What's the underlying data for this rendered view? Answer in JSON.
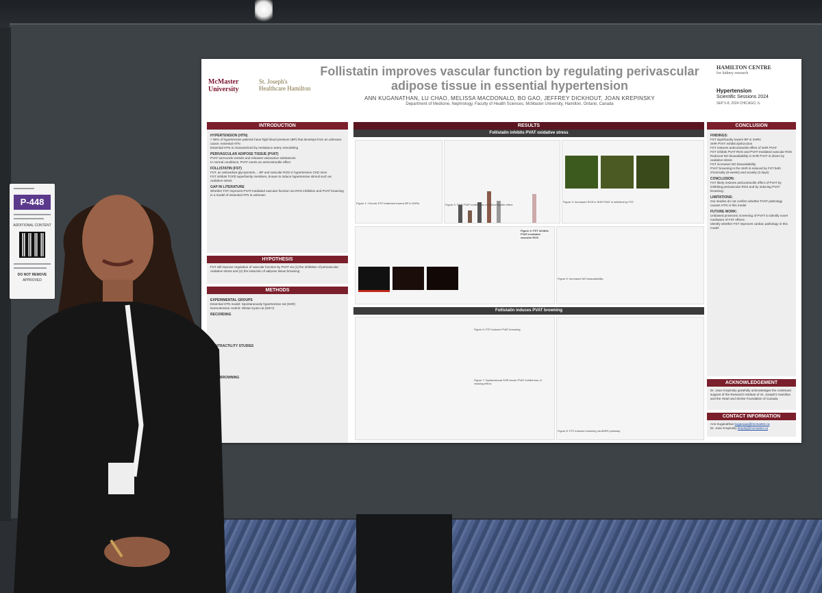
{
  "sign": {
    "badge": "P-448",
    "note": "DO NOT REMOVE",
    "small_a": "ADDITIONAL CONTENT",
    "small_b": "APPROVED"
  },
  "poster": {
    "logo_mcmaster": "McMaster University",
    "logo_stjoes": "St. Joseph's Healthcare Hamilton",
    "logo_hamilton": "HAMILTON CENTRE",
    "logo_hamilton_sub": "for kidney research",
    "logo_hypertension": "Hypertension",
    "logo_hypertension_sub": "Scientific Sessions 2024",
    "logo_dates": "SEP 5-8, 2024 CHICAGO, IL",
    "title": "Follistatin improves vascular function by regulating perivascular adipose tissue in essential hypertension",
    "authors": "ANN KUGANATHAN, LU CHAO, MELISSA MACDONALD, BO GAO, JEFFREY DICKHOUT, JOAN KREPINSKY",
    "department": "Department of Medicine, Nephrology, Faculty of Health Sciences, McMaster University, Hamilton, Ontario, Canada",
    "sections": {
      "introduction": "INTRODUCTION",
      "hypothesis": "HYPOTHESIS",
      "methods": "METHODS",
      "results": "RESULTS",
      "results_sub1": "Follistatin inhibits PVAT oxidative stress",
      "results_sub2": "Follistatin induces PVAT browning",
      "conclusion": "CONCLUSION",
      "acknowledgement": "ACKNOWLEDGEMENT",
      "contact": "CONTACT INFORMATION"
    },
    "intro": {
      "h1": "HYPERTENSION (HTN)",
      "t1": "> 95% of hypertensive patients have high blood pressure (BP) that develops from an unknown cause: essential HTN",
      "t2": "Essential HTN is characterized by resistance artery remodeling",
      "h2": "PERIVASCULAR ADIPOSE TISSUE (PVAT)",
      "t3": "PVAT surrounds vessels and releases vasoactive substances",
      "t4": "In normal conditions, PVAT exerts an anticontractile effect",
      "h3": "FOLLISTATIN (FST)",
      "t5": "FST, an antioxidant glycoprotein, ↓ BP and vascular ROS in hypertensive CKD mice",
      "t6": "FST inhibits TGFβ superfamily members, known to induce hypertensive stimuli such as oxidative stress",
      "h4": "GAP IN LITERATURE",
      "t7": "Whether FST improves PVAT-mediated vascular function via ROS inhibition and PVAT browning in a model of essential HTN is unknown"
    },
    "hypothesis_text": "FST will improve regulation of vascular function by PVAT via (1) the inhibition of perivascular oxidative stress and (2) the induction of adipose tissue browning",
    "methods": {
      "h1": "EXPERIMENTAL GROUPS",
      "t1": "Essential HTN model: Spontaneously hypertensive rat (SHR)",
      "t2": "Normotensive control: Wistar Kyoto rat (WKY)",
      "h2": "RECORDING",
      "h3": "CONTRACTILITY STUDIES",
      "h4": "PVAT BROWNING"
    },
    "figure_captions": {
      "f1": "Figure 1: Chronic FST treatment lowers BP in SHRs.",
      "f2": "Figure 2: SHR PVAT exhibit loss of anticontractile effect.",
      "f3": "Figure 3: Increased ROS in SHR PVAT is inhibited by FST.",
      "f4": "Figure 4: FST inhibits PVAT-mediated vascular ROS",
      "f5": "Figure 5: Increased NO bioavailability",
      "f6": "Figure 6: FST induces PVAT browning.",
      "f7": "Figure 7: Dysfunctional SHR brown PVAT exhibit loss of relaxing effect.",
      "f8": "Figure 8: FST induces browning via AMPK pathway."
    },
    "conclusion": {
      "findings_h": "FINDINGS:",
      "f1": "FST significantly lowers BP in SHRs",
      "f2": "SHR PVAT exhibit dysfunction",
      "f3": "FST restores anticontractile effect of SHR PVAT",
      "f4": "FST inhibits PVAT ROS and PVAT-mediated vascular ROS",
      "f5": "Reduced NO bioavailability in SHR PVAT is driven by oxidative stress",
      "f6": "FST increases NO bioavailability",
      "f7": "PVAT browning in the SHR is induced by FST both chronically (8 weeks) and acutely (3 days)",
      "conclusion_h": "CONCLUSION:",
      "c1": "FST likely restores anticontractile effect of PVAT by inhibiting perivascular ROS and by inducing PVAT browning.",
      "limitations_h": "LIMITATIONS:",
      "l1": "Our studies do not confirm whether PVAT pathology causes HTN in this model",
      "future_h": "FUTURE WORK:",
      "w1": "Unbiased proteomic screening of PVAT to identify novel mediators of FST effects",
      "w2": "Identify whether FST improves cardiac pathology in this model"
    },
    "acknowledgement_text": "Dr. Joan Krepinsky gratefully acknowledges the continued support of the Research Institute of St. Joseph's Hamilton and the Heart and Stroke Foundation of Canada.",
    "contact": {
      "name1": "Ann Kuganathan",
      "email1": "kuganaaa@mcmaster.ca",
      "name2": "Dr. Joan Krepinsky",
      "email2": "krepinj@mcmaster.ca"
    }
  }
}
